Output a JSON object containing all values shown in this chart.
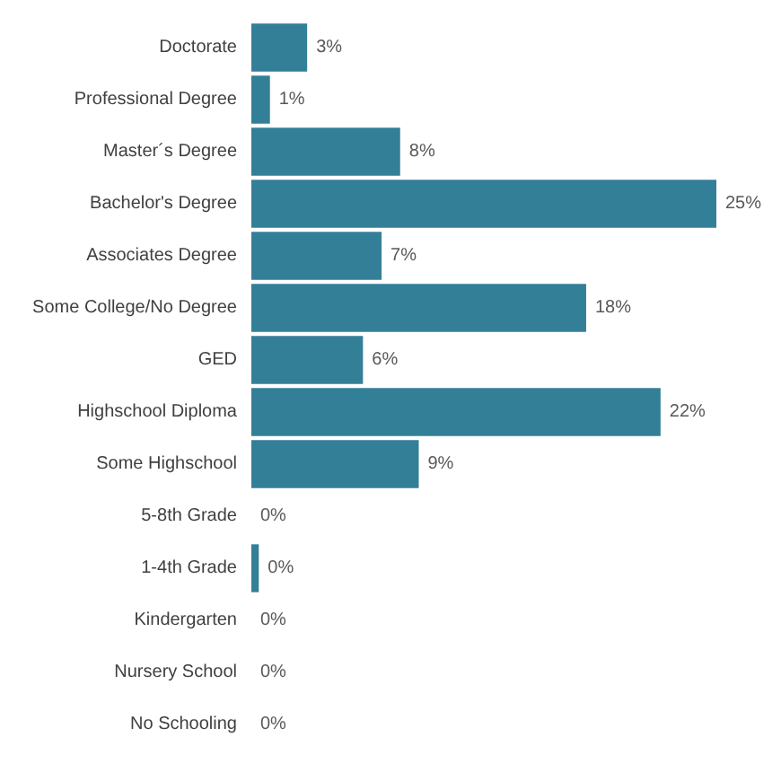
{
  "chart_data": {
    "type": "bar",
    "orientation": "horizontal",
    "categories": [
      "Doctorate",
      "Professional Degree",
      "Master´s Degree",
      "Bachelor's Degree",
      "Associates Degree",
      "Some College/No Degree",
      "GED",
      "Highschool Diploma",
      "Some Highschool",
      "5-8th Grade",
      "1-4th Grade",
      "Kindergarten",
      "Nursery School",
      "No Schooling"
    ],
    "values": [
      3,
      1,
      8,
      25,
      7,
      18,
      6,
      22,
      9,
      0,
      0.4,
      0,
      0,
      0
    ],
    "value_labels": [
      "3%",
      "1%",
      "8%",
      "25%",
      "7%",
      "18%",
      "6%",
      "22%",
      "9%",
      "0%",
      "0%",
      "0%",
      "0%",
      "0%"
    ],
    "color": "#347f98"
  }
}
